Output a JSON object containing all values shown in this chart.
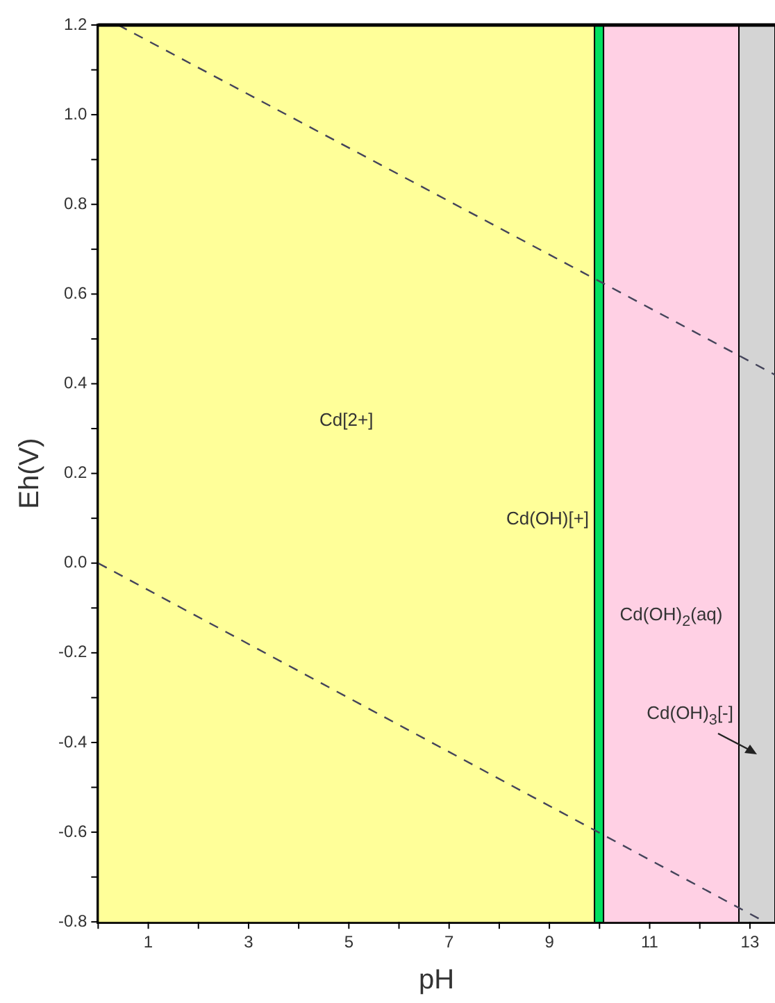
{
  "chart_data": {
    "type": "line",
    "xlabel": "pH",
    "ylabel": "Eh(V)",
    "xlim": [
      0,
      13.5
    ],
    "ylim": [
      -0.8,
      1.2
    ],
    "xticks": [
      {
        "value": 0,
        "label": null
      },
      1,
      {
        "value": 2,
        "label": null
      },
      3,
      {
        "value": 4,
        "label": null
      },
      5,
      {
        "value": 6,
        "label": null
      },
      7,
      {
        "value": 8,
        "label": null
      },
      9,
      {
        "value": 10,
        "label": null
      },
      11,
      {
        "value": 12,
        "label": null
      },
      13
    ],
    "yticks": [
      {
        "value": -0.8,
        "label": "-0.8"
      },
      {
        "value": -0.7,
        "label": null
      },
      {
        "value": -0.6,
        "label": "-0.6"
      },
      {
        "value": -0.5,
        "label": null
      },
      {
        "value": -0.4,
        "label": "-0.4"
      },
      {
        "value": -0.3,
        "label": null
      },
      {
        "value": -0.2,
        "label": "-0.2"
      },
      {
        "value": -0.1,
        "label": null
      },
      {
        "value": 0,
        "label": "0.0"
      },
      {
        "value": 0.1,
        "label": null
      },
      {
        "value": 0.2,
        "label": "0.2"
      },
      {
        "value": 0.3,
        "label": null
      },
      {
        "value": 0.4,
        "label": "0.4"
      },
      {
        "value": 0.5,
        "label": null
      },
      {
        "value": 0.6,
        "label": "0.6"
      },
      {
        "value": 0.7,
        "label": null
      },
      {
        "value": 0.8,
        "label": "0.8"
      },
      {
        "value": 0.9,
        "label": null
      },
      {
        "value": 1.0,
        "label": "1.0"
      },
      {
        "value": 1.1,
        "label": null
      },
      {
        "value": 1.2,
        "label": "1.2"
      }
    ],
    "series": [
      {
        "color": "#44445a",
        "x": [
          0.4,
          13.5
        ],
        "values": [
          1.2,
          0.42
        ]
      },
      {
        "color": "#44445a",
        "x": [
          0,
          13.3
        ],
        "values": [
          0,
          -0.8
        ]
      }
    ],
    "line_style": "dashed",
    "marker": "none",
    "legend": false,
    "bands": [
      {
        "axis": "x",
        "from": 0,
        "to": 9.9,
        "color": "#ffff99",
        "label": "Cd[2+]"
      },
      {
        "axis": "x",
        "from": 9.9,
        "to": 10.08,
        "color": "#00e060",
        "label": "Cd(OH)[+]"
      },
      {
        "axis": "x",
        "from": 10.08,
        "to": 12.78,
        "color": "#ffd0e4",
        "label": "Cd(OH)$_{2}$(aq)"
      },
      {
        "axis": "x",
        "from": 12.78,
        "to": 13.5,
        "color": "#d4d4d4",
        "label": "Cd(OH)$_{3}$[-]"
      }
    ]
  }
}
